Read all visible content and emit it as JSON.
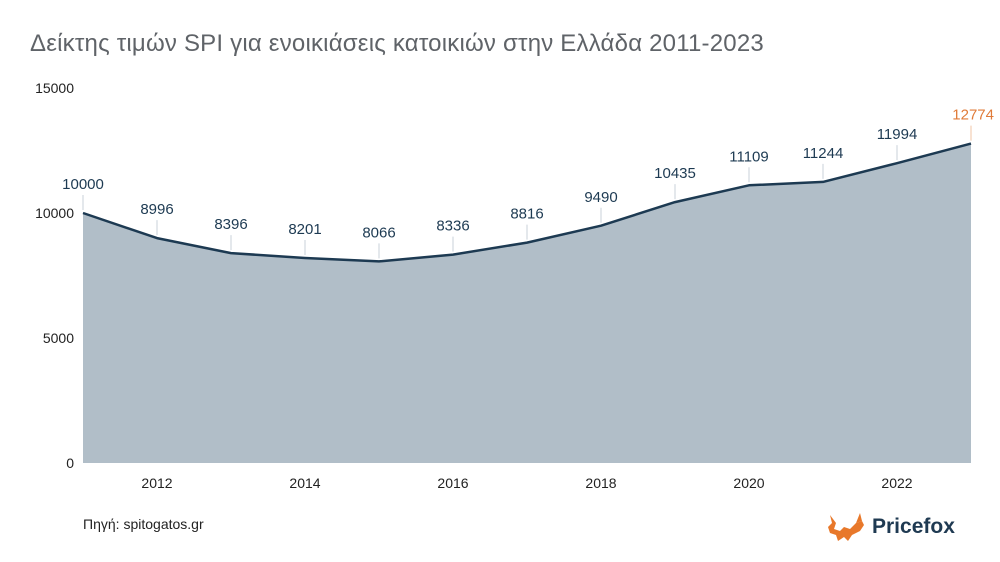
{
  "chart_data": {
    "type": "area",
    "title": "Δείκτης τιμών SPI για ενοικιάσεις κατοικιών στην Ελλάδα 2011-2023",
    "x": [
      2011,
      2012,
      2013,
      2014,
      2015,
      2016,
      2017,
      2018,
      2019,
      2020,
      2021,
      2022,
      2023
    ],
    "series": [
      {
        "values": [
          10000,
          8996,
          8396,
          8201,
          8066,
          8336,
          8816,
          9490,
          10435,
          11109,
          11244,
          11994,
          12774
        ]
      }
    ],
    "data_labels": [
      "10000",
      "8996",
      "8396",
      "8201",
      "8066",
      "8336",
      "8816",
      "9490",
      "10435",
      "11109",
      "11244",
      "11994",
      "12774"
    ],
    "xlim": [
      2011,
      2023
    ],
    "ylim": [
      0,
      15000
    ],
    "x_ticks": [
      "2012",
      "2014",
      "2016",
      "2018",
      "2020",
      "2022"
    ],
    "y_ticks": [
      "0",
      "5000",
      "10000",
      "15000"
    ],
    "xlabel": "",
    "ylabel": "",
    "grid": false,
    "legend": "none",
    "colors": {
      "area_fill": "#b1bec8",
      "line": "#1d3a52",
      "label": "#1d3a52",
      "highlight_label": "#e07b39",
      "axis_text": "#222222",
      "title": "#5f6368"
    }
  },
  "source_text": "Πηγή: spitogatos.gr",
  "brand": {
    "name": "Pricefox",
    "logo_icon": "fox-icon",
    "logo_color": "#e8782a"
  }
}
